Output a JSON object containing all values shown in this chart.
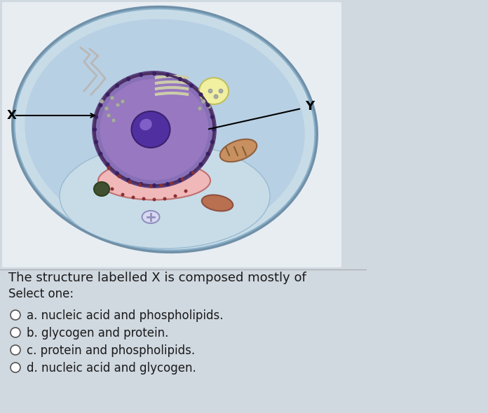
{
  "bg_color": "#d0d8e0",
  "question": "The structure labelled X is composed mostly of",
  "select_one": "Select one:",
  "options": [
    "a. nucleic acid and phospholipids.",
    "b. glycogen and protein.",
    "c. protein and phospholipids.",
    "d. nucleic acid and glycogen."
  ],
  "label_x": "X",
  "label_y": "Y",
  "cell_bg": "#b8d8e8",
  "nucleus_outer": "#7a5fa0",
  "nucleus_inner": "#9060b0",
  "nucleolus": "#6040a0",
  "text_color": "#1a1a1a",
  "question_fontsize": 13,
  "option_fontsize": 12,
  "select_fontsize": 12
}
